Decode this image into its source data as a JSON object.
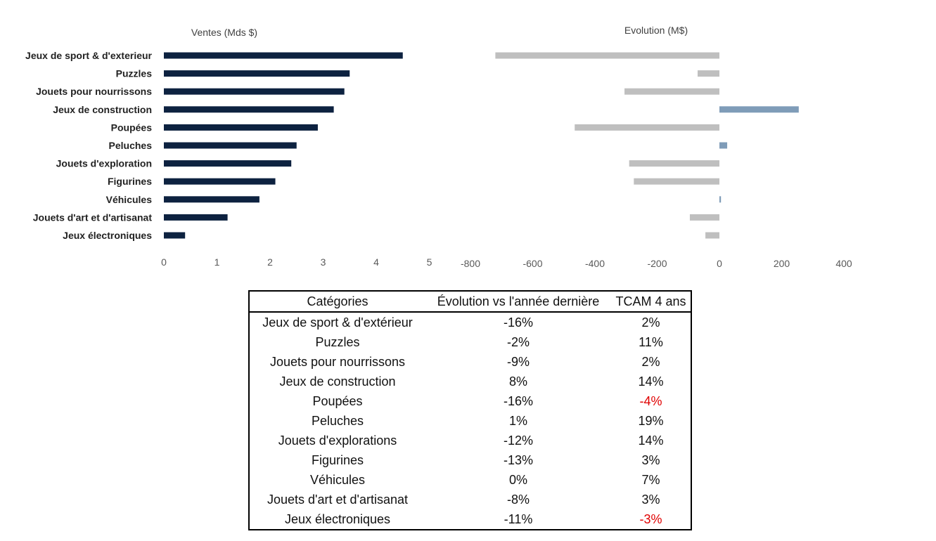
{
  "chart_data": [
    {
      "type": "bar",
      "orientation": "horizontal",
      "title": "Ventes (Mds $)",
      "categories": [
        "Jeux de sport & d'exterieur",
        "Puzzles",
        "Jouets pour nourrissons",
        "Jeux de construction",
        "Poupées",
        "Peluches",
        "Jouets d'exploration",
        "Figurines",
        "Véhicules",
        "Jouets d'art et d'artisanat",
        "Jeux électroniques"
      ],
      "values": [
        4.5,
        3.5,
        3.4,
        3.2,
        2.9,
        2.5,
        2.4,
        2.1,
        1.8,
        1.2,
        0.4
      ],
      "xlim": [
        0,
        5
      ],
      "xticks": [
        "0",
        "1",
        "2",
        "3",
        "4",
        "5"
      ],
      "bar_color": "#0d2240"
    },
    {
      "type": "bar",
      "orientation": "horizontal",
      "title": "Evolution (M$)",
      "categories": [
        "Jeux de sport & d'exterieur",
        "Puzzles",
        "Jouets pour nourrissons",
        "Jeux de construction",
        "Poupées",
        "Peluches",
        "Jouets d'exploration",
        "Figurines",
        "Véhicules",
        "Jouets d'art et d'artisanat",
        "Jeux électroniques"
      ],
      "values": [
        -720,
        -70,
        -305,
        255,
        -465,
        25,
        -290,
        -275,
        5,
        -95,
        -45
      ],
      "xlim": [
        -800,
        400
      ],
      "xticks": [
        "-800",
        "-600",
        "-400",
        "-200",
        "0",
        "200",
        "400"
      ],
      "negative_color": "#bfbfbf",
      "positive_color": "#7f9cb8"
    }
  ],
  "table": {
    "headers": [
      "Catégories",
      "Évolution vs l'année dernière",
      "TCAM 4 ans"
    ],
    "rows": [
      [
        "Jeux de sport & d'extérieur",
        "-16%",
        "2%"
      ],
      [
        "Puzzles",
        "-2%",
        "11%"
      ],
      [
        "Jouets pour nourrissons",
        "-9%",
        "2%"
      ],
      [
        "Jeux de construction",
        "8%",
        "14%"
      ],
      [
        "Poupées",
        "-16%",
        "-4%"
      ],
      [
        "Peluches",
        "1%",
        "19%"
      ],
      [
        "Jouets d'explorations",
        "-12%",
        "14%"
      ],
      [
        "Figurines",
        "-13%",
        "3%"
      ],
      [
        "Véhicules",
        "0%",
        "7%"
      ],
      [
        "Jouets d'art et d'artisanat",
        "-8%",
        "3%"
      ],
      [
        "Jeux électroniques",
        "-11%",
        "-3%"
      ]
    ],
    "negative_text_color": "#e00000"
  }
}
